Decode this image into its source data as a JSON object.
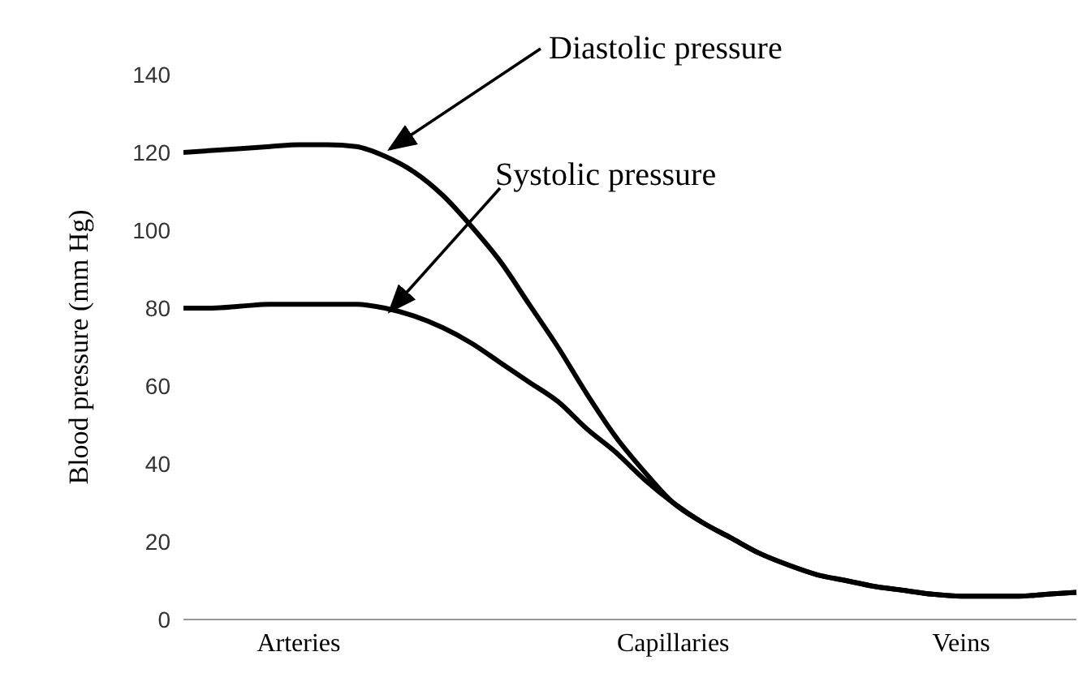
{
  "chart_data": {
    "type": "line",
    "ylabel": "Blood pressure (mm Hg)",
    "categories": [
      null,
      null,
      null,
      null,
      "Arteries",
      null,
      null,
      null,
      null,
      null,
      null,
      null,
      null,
      null,
      null,
      null,
      null,
      "Capillaries",
      null,
      null,
      null,
      null,
      null,
      null,
      null,
      null,
      null,
      "Veins",
      null,
      null,
      null,
      null
    ],
    "series": [
      {
        "name": "Diastolic pressure",
        "color": "#000000",
        "values": [
          120,
          120.5,
          121,
          121.5,
          122,
          122,
          121.5,
          119,
          115,
          109,
          101,
          92,
          81,
          70,
          58,
          47,
          38,
          30,
          25,
          21,
          17,
          14,
          11.5,
          10,
          8.5,
          7.5,
          6.5,
          6,
          6,
          6,
          6.5,
          7
        ]
      },
      {
        "name": "Systolic pressure",
        "color": "#000000",
        "values": [
          80,
          80,
          80.5,
          81,
          81,
          81,
          81,
          80,
          78,
          75,
          71,
          66,
          61,
          56,
          49,
          43,
          36,
          30,
          25,
          21,
          17,
          14,
          11.5,
          10,
          8.5,
          7.5,
          6.5,
          6,
          6,
          6,
          6.5,
          7
        ]
      }
    ],
    "ylim": [
      0,
      140
    ],
    "yticks": [
      0,
      20,
      40,
      60,
      80,
      100,
      120,
      140
    ],
    "marker": "none",
    "line_style": "solid"
  }
}
